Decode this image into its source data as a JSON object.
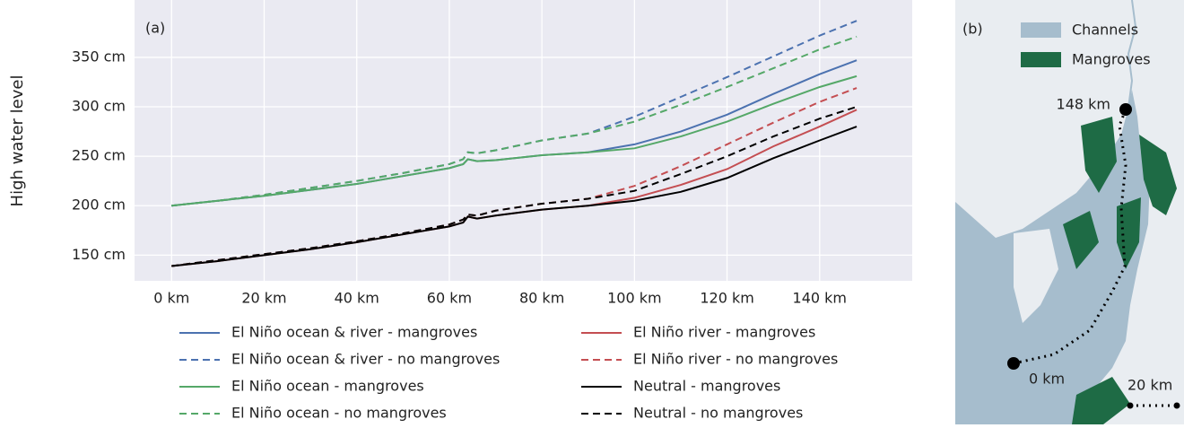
{
  "chart_data": {
    "type": "line",
    "annotation": "(a)",
    "y_label": "High water level",
    "x": [
      0,
      10,
      20,
      30,
      40,
      50,
      60,
      63,
      64,
      66,
      70,
      80,
      90,
      100,
      110,
      120,
      130,
      140,
      148
    ],
    "series": [
      {
        "name": "El Niño ocean & river - mangroves",
        "color": "#4c72b0",
        "linestyle": "solid",
        "values": [
          200,
          205,
          210,
          216,
          222,
          230,
          238,
          242,
          247,
          245,
          246,
          251,
          254,
          262,
          275,
          292,
          313,
          333,
          347
        ]
      },
      {
        "name": "El Niño ocean & river - no mangroves",
        "color": "#4c72b0",
        "linestyle": "dashed",
        "values": [
          200,
          205,
          211,
          218,
          225,
          233,
          242,
          247,
          254,
          253,
          256,
          266,
          273,
          290,
          310,
          330,
          351,
          372,
          387
        ]
      },
      {
        "name": "El Niño ocean - mangroves",
        "color": "#55a868",
        "linestyle": "solid",
        "values": [
          200,
          205,
          210,
          216,
          222,
          230,
          238,
          242,
          247,
          245,
          246,
          251,
          254,
          258,
          270,
          285,
          303,
          320,
          331
        ]
      },
      {
        "name": "El Niño ocean - no mangroves",
        "color": "#55a868",
        "linestyle": "dashed",
        "values": [
          200,
          205,
          211,
          218,
          225,
          233,
          242,
          247,
          254,
          253,
          256,
          266,
          273,
          285,
          302,
          320,
          339,
          358,
          371
        ]
      },
      {
        "name": "El Niño river - mangroves",
        "color": "#c44e52",
        "linestyle": "solid",
        "values": [
          139,
          144,
          150,
          156,
          163,
          171,
          179,
          183,
          189,
          187,
          190,
          196,
          200,
          208,
          221,
          237,
          260,
          280,
          297
        ]
      },
      {
        "name": "El Niño river - no mangroves",
        "color": "#c44e52",
        "linestyle": "dashed",
        "values": [
          139,
          145,
          151,
          157,
          164,
          172,
          181,
          186,
          191,
          190,
          195,
          202,
          207,
          220,
          240,
          262,
          284,
          305,
          319
        ]
      },
      {
        "name": "Neutral - mangroves",
        "color": "#000000",
        "linestyle": "solid",
        "values": [
          139,
          144,
          150,
          156,
          163,
          171,
          179,
          183,
          189,
          187,
          190,
          196,
          200,
          205,
          214,
          228,
          248,
          266,
          280
        ]
      },
      {
        "name": "Neutral - no mangroves",
        "color": "#000000",
        "linestyle": "dashed",
        "values": [
          139,
          145,
          151,
          157,
          164,
          172,
          181,
          186,
          191,
          190,
          195,
          202,
          207,
          215,
          232,
          250,
          270,
          288,
          300
        ]
      }
    ],
    "xlim": [
      -8,
      160
    ],
    "ylim": [
      124,
      408
    ],
    "xticks": [
      {
        "value": 0,
        "label": "0 km"
      },
      {
        "value": 20,
        "label": "20 km"
      },
      {
        "value": 40,
        "label": "40 km"
      },
      {
        "value": 60,
        "label": "60 km"
      },
      {
        "value": 80,
        "label": "80 km"
      },
      {
        "value": 100,
        "label": "100 km"
      },
      {
        "value": 120,
        "label": "120 km"
      },
      {
        "value": 140,
        "label": "140 km"
      }
    ],
    "yticks": [
      {
        "value": 150,
        "label": "150 cm"
      },
      {
        "value": 200,
        "label": "200 cm"
      },
      {
        "value": 250,
        "label": "250 cm"
      },
      {
        "value": 300,
        "label": "300 cm"
      },
      {
        "value": 350,
        "label": "350 cm"
      }
    ],
    "grid": true
  },
  "map": {
    "annotation": "(b)",
    "legend": [
      "Channels",
      "Mangroves"
    ],
    "start_label": "148 km",
    "end_label": "0 km",
    "scale_label": "20 km"
  }
}
